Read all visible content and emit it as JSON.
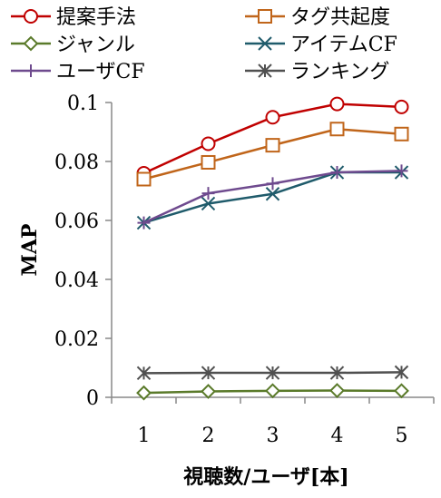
{
  "chart_data": {
    "type": "line",
    "xlabel": "視聴数/ユーザ[本]",
    "ylabel": "MAP",
    "categories": [
      "1",
      "2",
      "3",
      "4",
      "5"
    ],
    "ylim": [
      0,
      0.1
    ],
    "yticks": [
      "0",
      "0.02",
      "0.04",
      "0.06",
      "0.08",
      "0.1"
    ],
    "grid": false,
    "legend_position": "top",
    "series": [
      {
        "name": "提案手法",
        "color": "#c00000",
        "marker": "circle",
        "values": [
          0.076,
          0.086,
          0.095,
          0.0995,
          0.0985
        ]
      },
      {
        "name": "タグ共起度",
        "color": "#c0651a",
        "marker": "square",
        "values": [
          0.074,
          0.0797,
          0.0855,
          0.091,
          0.0893
        ]
      },
      {
        "name": "ジャンル",
        "color": "#5a7a2a",
        "marker": "diamond",
        "values": [
          0.0015,
          0.002,
          0.0022,
          0.0023,
          0.0022
        ]
      },
      {
        "name": "アイテムCF",
        "color": "#1f5b6b",
        "marker": "x",
        "values": [
          0.0592,
          0.0657,
          0.069,
          0.0763,
          0.0763
        ]
      },
      {
        "name": "ユーザCF",
        "color": "#6e4a8e",
        "marker": "plus",
        "values": [
          0.0592,
          0.0692,
          0.0725,
          0.0763,
          0.0768
        ]
      },
      {
        "name": "ランキング",
        "color": "#505050",
        "marker": "star",
        "values": [
          0.0082,
          0.0083,
          0.0083,
          0.0083,
          0.0085
        ]
      }
    ]
  }
}
